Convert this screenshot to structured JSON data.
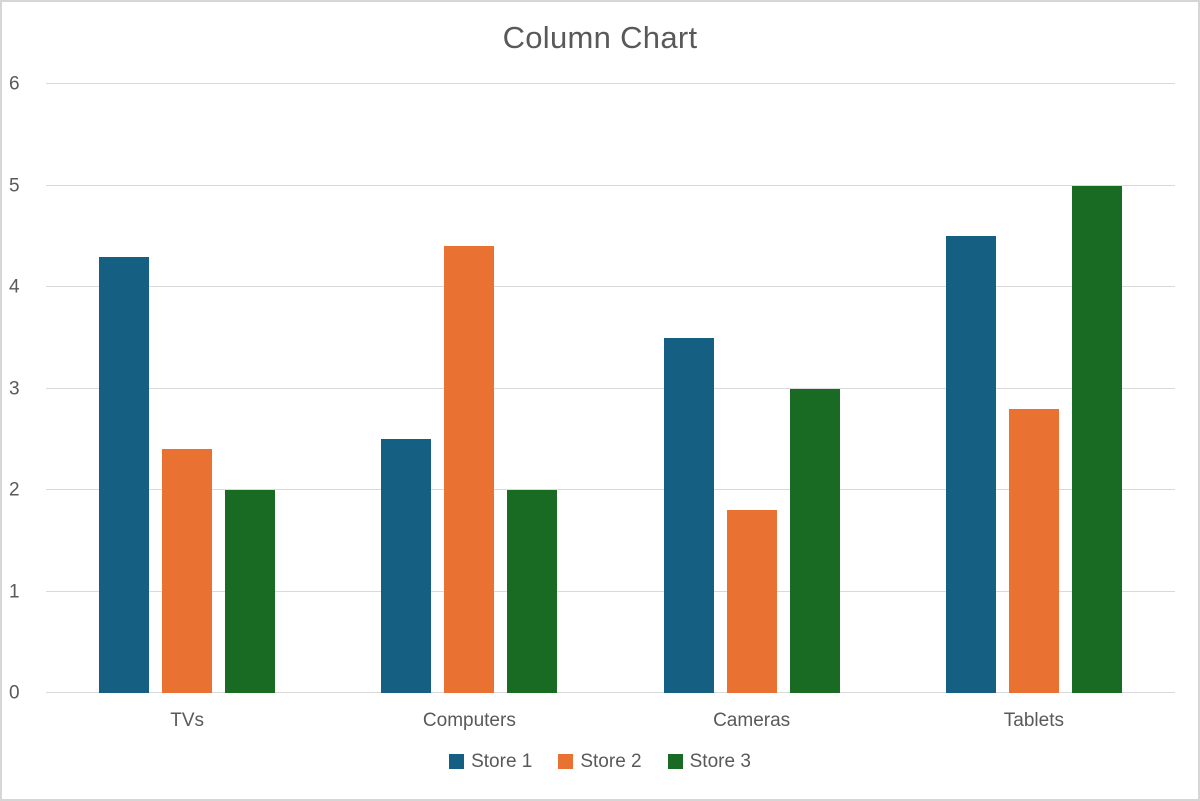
{
  "chart_data": {
    "type": "bar",
    "title": "Column Chart",
    "categories": [
      "TVs",
      "Computers",
      "Cameras",
      "Tablets"
    ],
    "series": [
      {
        "name": "Store 1",
        "color": "#156082",
        "values": [
          4.3,
          2.5,
          3.5,
          4.5
        ]
      },
      {
        "name": "Store 2",
        "color": "#E97132",
        "values": [
          2.4,
          4.4,
          1.8,
          2.8
        ]
      },
      {
        "name": "Store 3",
        "color": "#196B24",
        "values": [
          2.0,
          2.0,
          3.0,
          5.0
        ]
      }
    ],
    "xlabel": "",
    "ylabel": "",
    "y_axis": {
      "min": 0,
      "max": 6,
      "tick_interval": 1,
      "ticks": [
        0,
        1,
        2,
        3,
        4,
        5,
        6
      ]
    },
    "grid": true,
    "legend_position": "bottom",
    "colors": {
      "title_text": "#595959",
      "axis_text": "#595959",
      "gridline": "#D9D9D9",
      "background": "#FFFFFF",
      "frame_border": "#D6D6D6"
    }
  }
}
